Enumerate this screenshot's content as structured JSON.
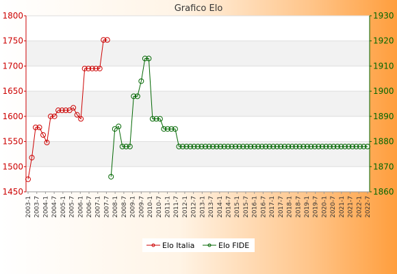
{
  "chart_data": {
    "type": "line",
    "title": "Grafico Elo",
    "grid": true,
    "legend_position": "bottom",
    "left_axis": {
      "ylim": [
        1450,
        1800
      ],
      "ticks": [
        1450,
        1500,
        1550,
        1600,
        1650,
        1700,
        1750,
        1800
      ],
      "color": "#cc0000"
    },
    "right_axis": {
      "ylim": [
        1860,
        1930
      ],
      "ticks": [
        1860,
        1870,
        1880,
        1890,
        1900,
        1910,
        1920,
        1930
      ],
      "color": "#006600"
    },
    "colors": {
      "elo_italia": "#cc0000",
      "elo_fide": "#006600"
    },
    "x_count": 91,
    "x_tick_labels": [
      "2003-1",
      "2003-7",
      "2004-1",
      "2004-7",
      "2005-1",
      "2005-7",
      "2006-1",
      "2006-7",
      "2007-1",
      "2007-7",
      "2008-1",
      "2008-7",
      "2009-1",
      "2009-7",
      "2010-1",
      "2010-7",
      "2011-1",
      "2011-7",
      "2012-1",
      "2012-7",
      "2013-1",
      "2013-7",
      "2014-1",
      "2014-7",
      "2015-1",
      "2015-7",
      "2016-1",
      "2016-7",
      "2017-1",
      "2017-7",
      "2018-1",
      "2018-7",
      "2019-1",
      "2019-7",
      "2020-1",
      "2020-7",
      "2021-1",
      "2021-7",
      "2022-1",
      "2022-7"
    ],
    "series": [
      {
        "name": "Elo Italia",
        "axis": "left",
        "x": [
          0,
          1,
          2,
          3,
          4,
          5,
          6,
          7,
          8,
          9,
          10,
          11,
          12,
          13,
          14,
          15,
          16,
          17,
          18,
          19,
          20,
          21
        ],
        "values": [
          1475,
          1518,
          1578,
          1578,
          1563,
          1548,
          1600,
          1600,
          1612,
          1612,
          1612,
          1612,
          1617,
          1603,
          1595,
          1695,
          1695,
          1695,
          1695,
          1695,
          1752,
          1752
        ]
      },
      {
        "name": "Elo FIDE",
        "axis": "right",
        "x": [
          22,
          23,
          24,
          25,
          26,
          27,
          28,
          29,
          30,
          31,
          32,
          33,
          34,
          35,
          36,
          37,
          38,
          39,
          40,
          41,
          42,
          43,
          44,
          45,
          46,
          47,
          48,
          49,
          50,
          51,
          52,
          53,
          54,
          55,
          56,
          57,
          58,
          59,
          60,
          61,
          62,
          63,
          64,
          65,
          66,
          67,
          68,
          69,
          70,
          71,
          72,
          73,
          74,
          75,
          76,
          77,
          78,
          79,
          80,
          81,
          82,
          83,
          84,
          85,
          86,
          87,
          88,
          89,
          90
        ],
        "values": [
          1866,
          1885,
          1886,
          1878,
          1878,
          1878,
          1898,
          1898,
          1904,
          1913,
          1913,
          1889,
          1889,
          1889,
          1885,
          1885,
          1885,
          1885,
          1878,
          1878,
          1878,
          1878,
          1878,
          1878,
          1878,
          1878,
          1878,
          1878,
          1878,
          1878,
          1878,
          1878,
          1878,
          1878,
          1878,
          1878,
          1878,
          1878,
          1878,
          1878,
          1878,
          1878,
          1878,
          1878,
          1878,
          1878,
          1878,
          1878,
          1878,
          1878,
          1878,
          1878,
          1878,
          1878,
          1878,
          1878,
          1878,
          1878,
          1878,
          1878,
          1878,
          1878,
          1878,
          1878,
          1878,
          1878,
          1878,
          1878,
          1878
        ]
      }
    ]
  }
}
